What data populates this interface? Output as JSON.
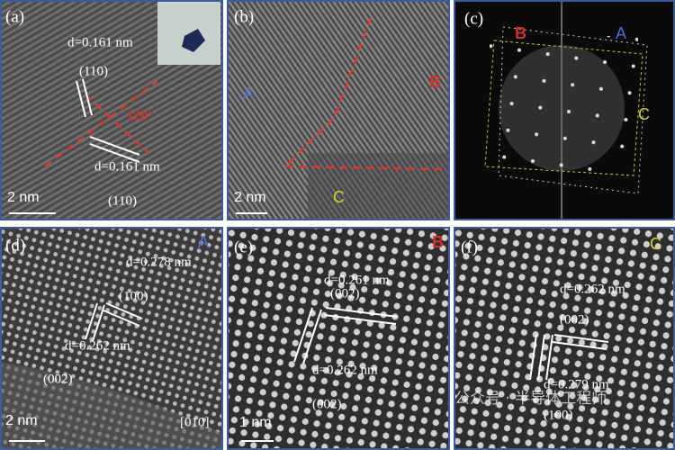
{
  "panels": [
    {
      "label": "(a)",
      "annotations": [
        "d=0.161 nm",
        "(110)",
        "120°",
        "d=0.161 nm",
        "(110)"
      ],
      "scale_bar": "2 nm"
    },
    {
      "label": "(b)",
      "annotations": [
        "A",
        "B",
        "C"
      ],
      "scale_bar": "2 nm"
    },
    {
      "label": "(c)",
      "annotations": [
        "B",
        "A",
        "C"
      ]
    },
    {
      "label": "(d)",
      "annotations": [
        "A",
        "d=0.278 nm",
        "(100)",
        "d=0.262 nm",
        "(002)",
        "[010]"
      ],
      "scale_bar": "2 nm"
    },
    {
      "label": "(e)",
      "annotations": [
        "B",
        "d=0.261 nm",
        "(002)",
        "d=0.262 nm",
        "(002)"
      ],
      "scale_bar": "1 nm"
    },
    {
      "label": "(f)",
      "annotations": [
        "C",
        "d=0.262 nm",
        "(002)",
        "d=0.279 nm",
        "(100)"
      ]
    }
  ],
  "watermark": "公众号 · 半导体工程师"
}
